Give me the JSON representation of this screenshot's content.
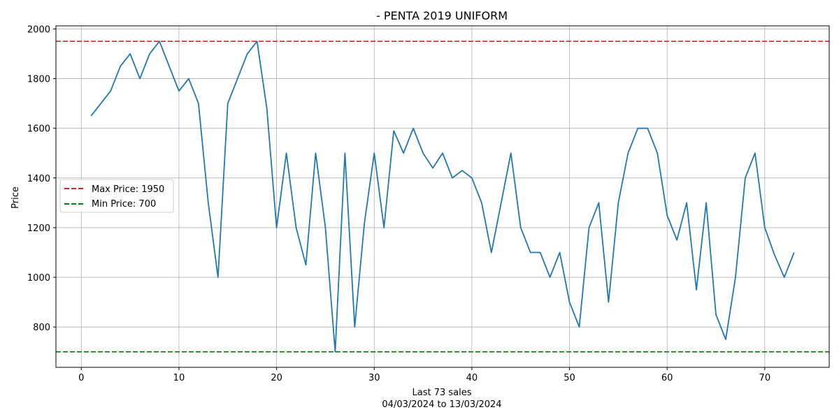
{
  "chart_data": {
    "type": "line",
    "title": "- PENTA 2019 UNIFORM",
    "xlabel_line1": "Last 73 sales",
    "xlabel_line2": "04/03/2024 to 13/03/2024",
    "ylabel": "Price",
    "xlim": [
      -2.6,
      76.6
    ],
    "ylim": [
      637.5,
      2012.5
    ],
    "xticks": [
      0,
      10,
      20,
      30,
      40,
      50,
      60,
      70
    ],
    "yticks": [
      800,
      1000,
      1200,
      1400,
      1600,
      1800,
      2000
    ],
    "grid": true,
    "legend_position": "center-left",
    "series": [
      {
        "color": "#1f77b4",
        "x": [
          1,
          2,
          3,
          4,
          5,
          6,
          7,
          8,
          9,
          10,
          11,
          12,
          13,
          14,
          15,
          16,
          17,
          18,
          19,
          20,
          21,
          22,
          23,
          24,
          25,
          26,
          27,
          28,
          29,
          30,
          31,
          32,
          33,
          34,
          35,
          36,
          37,
          38,
          39,
          40,
          41,
          42,
          43,
          44,
          45,
          46,
          47,
          48,
          49,
          50,
          51,
          52,
          53,
          54,
          55,
          56,
          57,
          58,
          59,
          60,
          61,
          62,
          63,
          64,
          65,
          66,
          67,
          68,
          69,
          70,
          71,
          72,
          73
        ],
        "values": [
          1650,
          1700,
          1750,
          1850,
          1900,
          1800,
          1900,
          1950,
          1850,
          1750,
          1800,
          1700,
          1300,
          1000,
          1700,
          1800,
          1900,
          1950,
          1680,
          1200,
          1500,
          1200,
          1050,
          1500,
          1200,
          700,
          1500,
          800,
          1220,
          1500,
          1200,
          1590,
          1500,
          1600,
          1500,
          1440,
          1500,
          1400,
          1430,
          1400,
          1300,
          1100,
          1300,
          1500,
          1200,
          1100,
          1100,
          1000,
          1100,
          900,
          800,
          1200,
          1300,
          900,
          1300,
          1500,
          1600,
          1600,
          1500,
          1250,
          1150,
          1300,
          950,
          1300,
          850,
          750,
          1000,
          1400,
          1500,
          1200,
          1090,
          1000,
          1100
        ]
      }
    ],
    "reference_lines": [
      {
        "name": "Max Price: 1950",
        "value": 1950,
        "color": "#d62728"
      },
      {
        "name": "Min Price: 700",
        "value": 700,
        "color": "#008000"
      }
    ]
  }
}
